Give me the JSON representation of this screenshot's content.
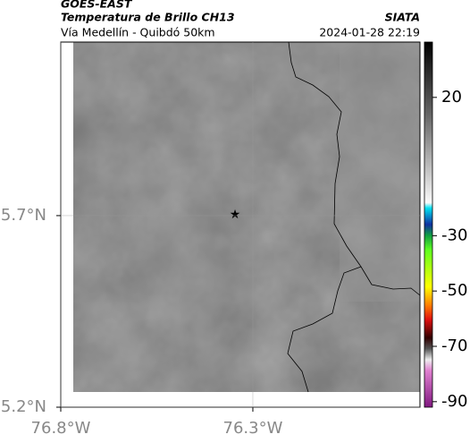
{
  "header": {
    "source": "GOES-EAST",
    "product": "Temperatura de Brillo CH13",
    "region": "Vía Medellín - Quibdó 50km",
    "org": "SIATA",
    "datetime": "2024-01-28 22:19"
  },
  "map": {
    "lonlim": [
      -76.8,
      -75.865
    ],
    "latlim": [
      5.2,
      6.153
    ],
    "lon_ticks": [
      {
        "value": -76.8,
        "label": "76.8°W"
      },
      {
        "value": -76.3,
        "label": "76.3°W"
      }
    ],
    "lat_ticks": [
      {
        "value": 5.7,
        "label": "5.7°N"
      },
      {
        "value": 5.2,
        "label": "5.2°N"
      }
    ],
    "grid": true
  },
  "colorbar": {
    "lim": [
      -92,
      40
    ],
    "ticks": [
      20,
      -30,
      -50,
      -70,
      -90
    ]
  }
}
